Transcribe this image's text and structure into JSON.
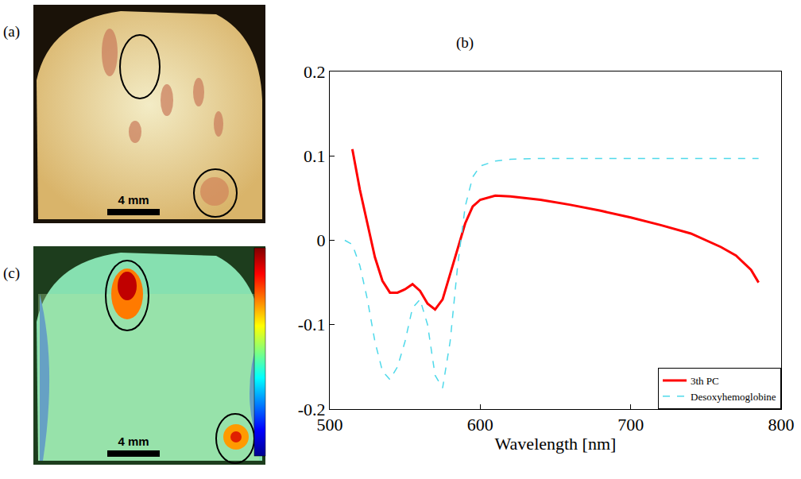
{
  "chart_data": {
    "type": "line",
    "title": "(b)",
    "x_label": "Wavelength [nm]",
    "x": [
      510,
      515,
      520,
      525,
      530,
      535,
      540,
      545,
      550,
      555,
      560,
      565,
      570,
      575,
      580,
      585,
      590,
      595,
      600,
      610,
      620,
      640,
      660,
      680,
      700,
      720,
      740,
      760,
      770,
      780,
      785
    ],
    "series": [
      {
        "name": "3th PC",
        "color": "#ff0000",
        "line_style": "solid",
        "values": [
          null,
          0.108,
          0.06,
          0.02,
          -0.02,
          -0.048,
          -0.062,
          -0.062,
          -0.058,
          -0.052,
          -0.06,
          -0.075,
          -0.082,
          -0.07,
          -0.04,
          -0.01,
          0.02,
          0.04,
          0.048,
          0.053,
          0.052,
          0.048,
          0.042,
          0.035,
          0.027,
          0.018,
          0.008,
          -0.008,
          -0.018,
          -0.035,
          -0.05
        ]
      },
      {
        "name": "Desoxyhemoglobine",
        "color": "#4fd9ea",
        "line_style": "dashed",
        "values": [
          0,
          -0.005,
          -0.03,
          -0.07,
          -0.12,
          -0.155,
          -0.165,
          -0.15,
          -0.12,
          -0.08,
          -0.07,
          -0.1,
          -0.16,
          -0.175,
          -0.12,
          -0.03,
          0.04,
          0.075,
          0.088,
          0.094,
          0.096,
          0.097,
          0.097,
          0.097,
          0.097,
          0.097,
          0.097,
          0.097,
          0.097,
          0.097,
          0.097
        ]
      }
    ],
    "xlim": [
      500,
      800
    ],
    "xticks": [
      500,
      600,
      700,
      800
    ],
    "ylim": [
      -0.2,
      0.2
    ],
    "yticks": [
      -0.2,
      -0.1,
      0,
      0.1,
      0.2
    ],
    "grid": false,
    "legend": "lower right"
  },
  "panels": [
    {
      "label": "(a)",
      "scale_bar": "4 mm"
    },
    {
      "label": "(c)",
      "scale_bar": "4 mm"
    }
  ]
}
